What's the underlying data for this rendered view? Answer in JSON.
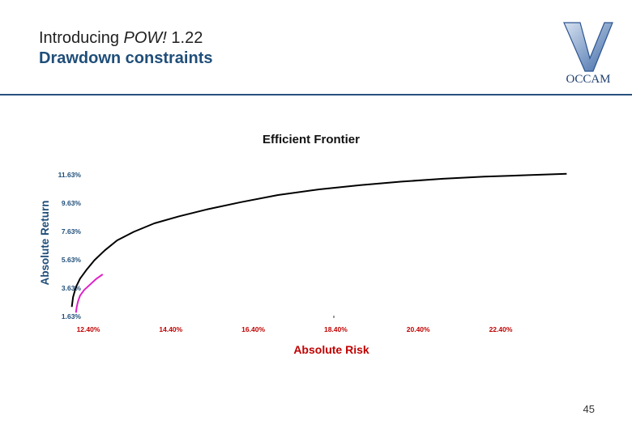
{
  "header": {
    "title_prefix": "Introducing ",
    "title_emphasis": "POW!",
    "title_suffix": " 1.22",
    "subtitle": "Drawdown constraints"
  },
  "logo": {
    "text": "OCCAM"
  },
  "page_number": "45",
  "colors": {
    "heading": "#1f4e79",
    "rule": "#27507e",
    "axis_label": "#1f4e79",
    "x_ticks": "#c00000",
    "xlabel": "#c00000",
    "series_main": "#000000",
    "series_constrained": "#e020c8"
  },
  "chart_data": {
    "type": "line",
    "title": "Efficient Frontier",
    "xlabel": "Absolute Risk",
    "ylabel": "Absolute Return",
    "x_ticks": [
      "12.40%",
      "14.40%",
      "16.40%",
      "18.40%",
      "20.40%",
      "22.40%"
    ],
    "y_ticks": [
      "1.63%",
      "3.63%",
      "5.63%",
      "7.63%",
      "9.63%",
      "11.63%"
    ],
    "xlim": [
      11.9,
      24.4
    ],
    "ylim": [
      1.63,
      11.63
    ],
    "grid": false,
    "series": [
      {
        "x": [
          12.0,
          12.03,
          12.1,
          12.2,
          12.35,
          12.55,
          12.8,
          13.1,
          13.5,
          14.0,
          14.6,
          15.3,
          16.1,
          17.0,
          18.0,
          19.0,
          20.0,
          21.0,
          22.0,
          23.0,
          24.0
        ],
        "y": [
          2.3,
          3.0,
          3.7,
          4.3,
          4.9,
          5.6,
          6.3,
          7.0,
          7.6,
          8.2,
          8.7,
          9.2,
          9.7,
          10.2,
          10.6,
          10.9,
          11.15,
          11.35,
          11.5,
          11.6,
          11.7
        ]
      },
      {
        "x": [
          12.1,
          12.12,
          12.15,
          12.2,
          12.3,
          12.45,
          12.6,
          12.75
        ],
        "y": [
          1.9,
          2.3,
          2.7,
          3.1,
          3.5,
          3.9,
          4.3,
          4.6
        ]
      }
    ]
  }
}
